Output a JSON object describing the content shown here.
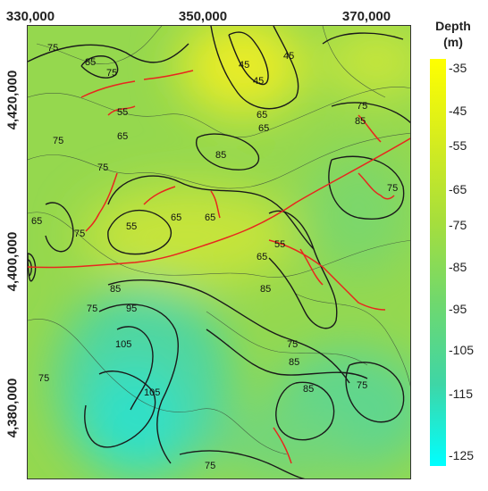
{
  "legend": {
    "title_line1": "Depth",
    "title_line2": "(m)",
    "ticks": [
      "-35",
      "-45",
      "-55",
      "-65",
      "-75",
      "-85",
      "-95",
      "-105",
      "-115",
      "-125"
    ]
  },
  "axes": {
    "x_ticks": [
      "330,000",
      "350,000",
      "370,000"
    ],
    "y_ticks": [
      "4,420,000",
      "4,400,000",
      "4,380,000"
    ]
  },
  "contour_labels": [
    "75",
    "85",
    "75",
    "45",
    "45",
    "45",
    "65",
    "55",
    "65",
    "75",
    "85",
    "85",
    "65",
    "75",
    "55",
    "65",
    "75",
    "65",
    "65",
    "55",
    "75",
    "65",
    "75",
    "85",
    "75",
    "95",
    "105",
    "105",
    "85",
    "75",
    "75",
    "85",
    "85",
    "75",
    "75"
  ],
  "colors": {
    "shallow": "#ffff00",
    "deep": "#00ffff",
    "fault": "#e8261e",
    "contour": "#1a1a1a"
  }
}
